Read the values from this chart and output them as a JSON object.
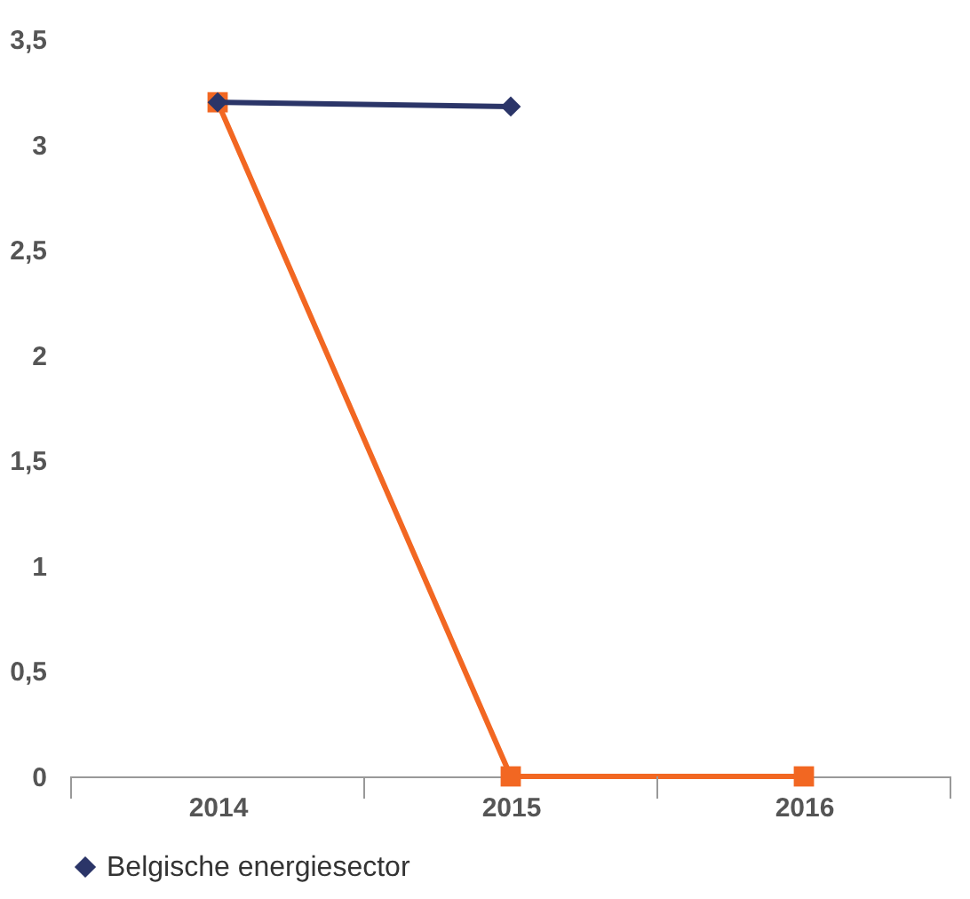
{
  "chart_data": {
    "type": "line",
    "categories": [
      "2014",
      "2015",
      "2016"
    ],
    "series": [
      {
        "name": "Belgische energiesector",
        "color": "#2b3568",
        "marker": "diamond",
        "values": [
          3.2,
          3.18,
          null
        ]
      },
      {
        "color": "#f26722",
        "marker": "square",
        "values": [
          3.2,
          0,
          0
        ]
      }
    ],
    "ylim": [
      0,
      3.5
    ],
    "yticks": [
      0,
      {
        "value": 0.5,
        "label": "0,5"
      },
      1,
      {
        "value": 1.5,
        "label": "1,5"
      },
      2,
      {
        "value": 2.5,
        "label": "2,5"
      },
      3,
      {
        "value": 3.5,
        "label": "3,5"
      }
    ],
    "grid": false,
    "legend": "bottom"
  }
}
